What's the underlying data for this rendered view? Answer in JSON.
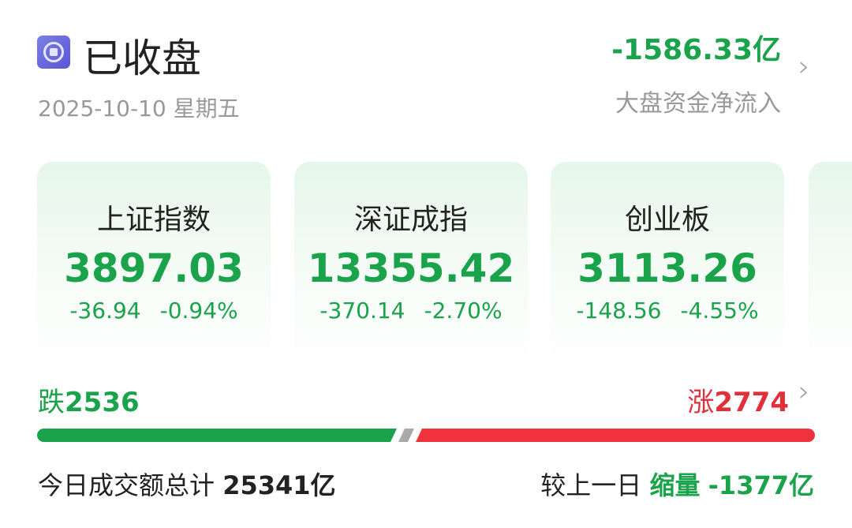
{
  "header": {
    "status_icon": "market-closed-icon",
    "title": "已收盘",
    "date": "2025-10-10 星期五",
    "net_flow_value": "-1586.33亿",
    "net_flow_label": "大盘资金净流入"
  },
  "indices": [
    {
      "name": "上证指数",
      "price": "3897.03",
      "change": "-36.94",
      "pct": "-0.94%"
    },
    {
      "name": "深证成指",
      "price": "13355.42",
      "change": "-370.14",
      "pct": "-2.70%"
    },
    {
      "name": "创业板",
      "price": "3113.26",
      "change": "-148.56",
      "pct": "-4.55%"
    }
  ],
  "breadth": {
    "fall_label": "跌",
    "fall_count": "2536",
    "rise_label": "涨",
    "rise_count": "2774",
    "fall_color": "#1aa34a",
    "rise_color": "#f0323c",
    "flat_color": "#aaaaaa"
  },
  "volume": {
    "label": "今日成交额总计",
    "value": "25341亿",
    "compare_label": "较上一日",
    "trend": "缩量",
    "delta": "-1377亿"
  },
  "colors": {
    "down": "#1aa34a",
    "up": "#e0303a"
  }
}
